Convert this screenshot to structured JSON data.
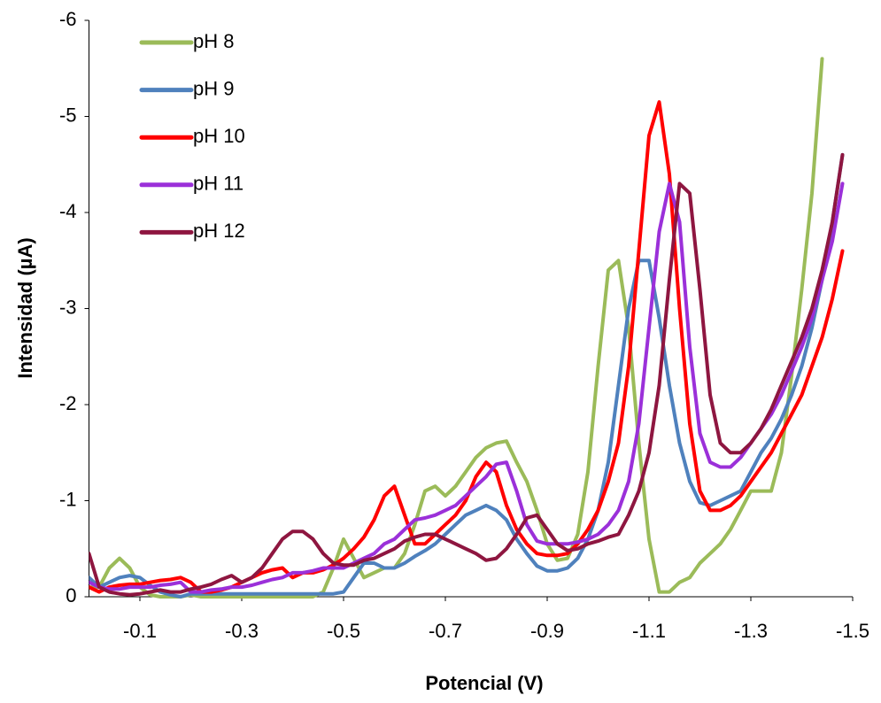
{
  "chart_data": {
    "type": "line",
    "xlabel": "Potencial (V)",
    "ylabel": "Intensidad (µA)",
    "xlim": [
      0,
      -1.5
    ],
    "ylim": [
      0,
      -6
    ],
    "xticks": [
      -0.1,
      -0.3,
      -0.5,
      -0.7,
      -0.9,
      -1.1,
      -1.3,
      -1.5
    ],
    "yticks": [
      0,
      -1,
      -2,
      -3,
      -4,
      -5,
      -6
    ],
    "grid": false,
    "legend": "upper-left",
    "x": [
      0,
      -0.02,
      -0.04,
      -0.06,
      -0.08,
      -0.1,
      -0.12,
      -0.14,
      -0.16,
      -0.18,
      -0.2,
      -0.22,
      -0.24,
      -0.26,
      -0.28,
      -0.3,
      -0.32,
      -0.34,
      -0.36,
      -0.38,
      -0.4,
      -0.42,
      -0.44,
      -0.46,
      -0.48,
      -0.5,
      -0.52,
      -0.54,
      -0.56,
      -0.58,
      -0.6,
      -0.62,
      -0.64,
      -0.66,
      -0.68,
      -0.7,
      -0.72,
      -0.74,
      -0.76,
      -0.78,
      -0.8,
      -0.82,
      -0.84,
      -0.86,
      -0.88,
      -0.9,
      -0.92,
      -0.94,
      -0.96,
      -0.98,
      -1.0,
      -1.02,
      -1.04,
      -1.06,
      -1.08,
      -1.1,
      -1.12,
      -1.14,
      -1.16,
      -1.18,
      -1.2,
      -1.22,
      -1.24,
      -1.26,
      -1.28,
      -1.3,
      -1.32,
      -1.34,
      -1.36,
      -1.38,
      -1.4,
      -1.42,
      -1.44,
      -1.46,
      -1.48
    ],
    "series": [
      {
        "name": "pH 8",
        "color": "#9bbb59",
        "values": [
          -0.1,
          -0.1,
          -0.3,
          -0.4,
          -0.3,
          -0.1,
          -0.02,
          0,
          0,
          0,
          -0.02,
          0,
          0,
          0,
          0,
          0,
          0,
          0,
          0,
          0,
          0,
          0,
          0,
          -0.05,
          -0.3,
          -0.6,
          -0.4,
          -0.2,
          -0.25,
          -0.3,
          -0.3,
          -0.45,
          -0.75,
          -1.1,
          -1.15,
          -1.05,
          -1.15,
          -1.3,
          -1.45,
          -1.55,
          -1.6,
          -1.62,
          -1.4,
          -1.2,
          -0.9,
          -0.55,
          -0.38,
          -0.4,
          -0.65,
          -1.3,
          -2.4,
          -3.4,
          -3.5,
          -2.8,
          -1.6,
          -0.6,
          -0.05,
          -0.05,
          -0.15,
          -0.2,
          -0.35,
          -0.45,
          -0.55,
          -0.7,
          -0.9,
          -1.1,
          -1.1,
          -1.1,
          -1.5,
          -2.3,
          -3.2,
          -4.2,
          -5.6,
          null,
          null
        ]
      },
      {
        "name": "pH 9",
        "color": "#4f81bd",
        "values": [
          -0.2,
          -0.1,
          -0.15,
          -0.2,
          -0.22,
          -0.2,
          -0.12,
          -0.05,
          -0.02,
          0,
          -0.03,
          -0.03,
          -0.03,
          -0.03,
          -0.03,
          -0.03,
          -0.03,
          -0.03,
          -0.03,
          -0.03,
          -0.03,
          -0.03,
          -0.03,
          -0.03,
          -0.03,
          -0.05,
          -0.2,
          -0.35,
          -0.35,
          -0.3,
          -0.3,
          -0.35,
          -0.42,
          -0.48,
          -0.55,
          -0.65,
          -0.75,
          -0.85,
          -0.9,
          -0.95,
          -0.9,
          -0.8,
          -0.6,
          -0.45,
          -0.32,
          -0.27,
          -0.27,
          -0.3,
          -0.4,
          -0.6,
          -0.9,
          -1.4,
          -2.2,
          -3.0,
          -3.5,
          -3.5,
          -2.9,
          -2.2,
          -1.6,
          -1.2,
          -0.98,
          -0.95,
          -1.0,
          -1.05,
          -1.1,
          -1.3,
          -1.5,
          -1.65,
          -1.85,
          -2.1,
          -2.4,
          -2.8,
          -3.3,
          -3.9,
          -4.6
        ]
      },
      {
        "name": "pH 10",
        "color": "#ff0000",
        "values": [
          -0.1,
          -0.05,
          -0.1,
          -0.12,
          -0.13,
          -0.13,
          -0.15,
          -0.17,
          -0.18,
          -0.2,
          -0.15,
          -0.05,
          -0.05,
          -0.07,
          -0.1,
          -0.15,
          -0.2,
          -0.25,
          -0.28,
          -0.3,
          -0.2,
          -0.25,
          -0.25,
          -0.28,
          -0.33,
          -0.4,
          -0.5,
          -0.62,
          -0.8,
          -1.05,
          -1.15,
          -0.85,
          -0.55,
          -0.55,
          -0.65,
          -0.75,
          -0.85,
          -1.0,
          -1.25,
          -1.4,
          -1.3,
          -0.95,
          -0.7,
          -0.55,
          -0.45,
          -0.43,
          -0.43,
          -0.45,
          -0.55,
          -0.7,
          -0.9,
          -1.2,
          -1.6,
          -2.4,
          -3.6,
          -4.8,
          -5.15,
          -4.4,
          -3.0,
          -1.8,
          -1.1,
          -0.9,
          -0.9,
          -0.95,
          -1.05,
          -1.2,
          -1.35,
          -1.5,
          -1.7,
          -1.9,
          -2.1,
          -2.4,
          -2.7,
          -3.1,
          -3.6
        ]
      },
      {
        "name": "pH 11",
        "color": "#9b30d9",
        "values": [
          -0.15,
          -0.1,
          -0.08,
          -0.08,
          -0.1,
          -0.1,
          -0.1,
          -0.12,
          -0.13,
          -0.15,
          -0.05,
          -0.05,
          -0.07,
          -0.08,
          -0.1,
          -0.1,
          -0.12,
          -0.15,
          -0.18,
          -0.2,
          -0.25,
          -0.25,
          -0.27,
          -0.3,
          -0.3,
          -0.3,
          -0.35,
          -0.4,
          -0.45,
          -0.55,
          -0.6,
          -0.7,
          -0.8,
          -0.82,
          -0.85,
          -0.9,
          -0.95,
          -1.05,
          -1.15,
          -1.25,
          -1.38,
          -1.4,
          -1.1,
          -0.75,
          -0.58,
          -0.55,
          -0.55,
          -0.55,
          -0.57,
          -0.6,
          -0.65,
          -0.75,
          -0.9,
          -1.2,
          -1.8,
          -2.8,
          -3.8,
          -4.3,
          -3.9,
          -2.6,
          -1.7,
          -1.4,
          -1.35,
          -1.35,
          -1.45,
          -1.6,
          -1.75,
          -1.9,
          -2.1,
          -2.35,
          -2.6,
          -2.9,
          -3.3,
          -3.7,
          -4.3
        ]
      },
      {
        "name": "pH 12",
        "color": "#8e1640",
        "values": [
          -0.45,
          -0.1,
          -0.05,
          -0.03,
          -0.02,
          -0.03,
          -0.05,
          -0.07,
          -0.05,
          -0.05,
          -0.08,
          -0.1,
          -0.13,
          -0.18,
          -0.22,
          -0.15,
          -0.2,
          -0.3,
          -0.45,
          -0.6,
          -0.68,
          -0.68,
          -0.6,
          -0.45,
          -0.35,
          -0.33,
          -0.33,
          -0.38,
          -0.4,
          -0.45,
          -0.5,
          -0.58,
          -0.62,
          -0.65,
          -0.65,
          -0.6,
          -0.55,
          -0.5,
          -0.45,
          -0.38,
          -0.4,
          -0.5,
          -0.65,
          -0.82,
          -0.85,
          -0.7,
          -0.55,
          -0.48,
          -0.5,
          -0.55,
          -0.58,
          -0.62,
          -0.65,
          -0.85,
          -1.1,
          -1.5,
          -2.2,
          -3.3,
          -4.3,
          -4.2,
          -3.2,
          -2.1,
          -1.6,
          -1.5,
          -1.5,
          -1.6,
          -1.75,
          -1.95,
          -2.2,
          -2.45,
          -2.7,
          -3.0,
          -3.4,
          -3.9,
          -4.6
        ]
      }
    ]
  }
}
